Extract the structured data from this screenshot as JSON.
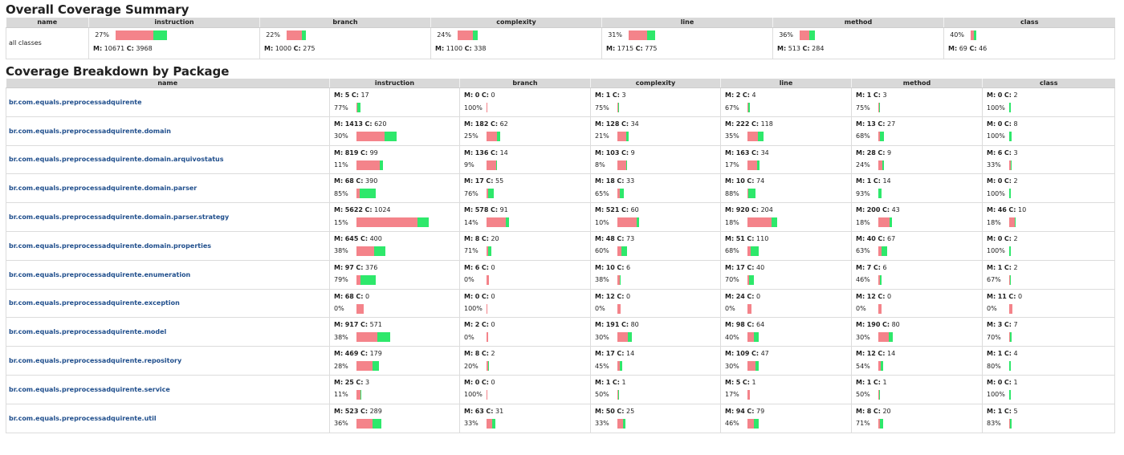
{
  "overall": {
    "title": "Overall Coverage Summary",
    "headers": [
      "name",
      "instruction",
      "branch",
      "complexity",
      "line",
      "method",
      "class"
    ],
    "row": {
      "name": "all classes",
      "cells": [
        {
          "pct": "27%",
          "missed": 10671,
          "covered": 3968,
          "m_label": "M:",
          "c_label": "C:",
          "m": "10671",
          "c": "3968"
        },
        {
          "pct": "22%",
          "missed": 1000,
          "covered": 275,
          "m_label": "M:",
          "c_label": "C:",
          "m": "1000",
          "c": "275"
        },
        {
          "pct": "24%",
          "missed": 1100,
          "covered": 338,
          "m_label": "M:",
          "c_label": "C:",
          "m": "1100",
          "c": "338"
        },
        {
          "pct": "31%",
          "missed": 1715,
          "covered": 775,
          "m_label": "M:",
          "c_label": "C:",
          "m": "1715",
          "c": "775"
        },
        {
          "pct": "36%",
          "missed": 513,
          "covered": 284,
          "m_label": "M:",
          "c_label": "C:",
          "m": "513",
          "c": "284"
        },
        {
          "pct": "40%",
          "missed": 69,
          "covered": 46,
          "m_label": "M:",
          "c_label": "C:",
          "m": "69",
          "c": "46"
        }
      ]
    }
  },
  "packages": {
    "title": "Coverage Breakdown by Package",
    "headers": [
      "name",
      "instruction",
      "branch",
      "complexity",
      "line",
      "method",
      "class"
    ],
    "rows": [
      {
        "name": "br.com.equals.preprocessadquirente",
        "cells": [
          {
            "m": "5",
            "c": "17",
            "pct": "77%"
          },
          {
            "m": "0",
            "c": "0",
            "pct": "100%"
          },
          {
            "m": "1",
            "c": "3",
            "pct": "75%"
          },
          {
            "m": "2",
            "c": "4",
            "pct": "67%"
          },
          {
            "m": "1",
            "c": "3",
            "pct": "75%"
          },
          {
            "m": "0",
            "c": "2",
            "pct": "100%"
          }
        ]
      },
      {
        "name": "br.com.equals.preprocessadquirente.domain",
        "cells": [
          {
            "m": "1413",
            "c": "620",
            "pct": "30%"
          },
          {
            "m": "182",
            "c": "62",
            "pct": "25%"
          },
          {
            "m": "128",
            "c": "34",
            "pct": "21%"
          },
          {
            "m": "222",
            "c": "118",
            "pct": "35%"
          },
          {
            "m": "13",
            "c": "27",
            "pct": "68%"
          },
          {
            "m": "0",
            "c": "8",
            "pct": "100%"
          }
        ]
      },
      {
        "name": "br.com.equals.preprocessadquirente.domain.arquivostatus",
        "cells": [
          {
            "m": "819",
            "c": "99",
            "pct": "11%"
          },
          {
            "m": "136",
            "c": "14",
            "pct": "9%"
          },
          {
            "m": "103",
            "c": "9",
            "pct": "8%"
          },
          {
            "m": "163",
            "c": "34",
            "pct": "17%"
          },
          {
            "m": "28",
            "c": "9",
            "pct": "24%"
          },
          {
            "m": "6",
            "c": "3",
            "pct": "33%"
          }
        ]
      },
      {
        "name": "br.com.equals.preprocessadquirente.domain.parser",
        "cells": [
          {
            "m": "68",
            "c": "390",
            "pct": "85%"
          },
          {
            "m": "17",
            "c": "55",
            "pct": "76%"
          },
          {
            "m": "18",
            "c": "33",
            "pct": "65%"
          },
          {
            "m": "10",
            "c": "74",
            "pct": "88%"
          },
          {
            "m": "1",
            "c": "14",
            "pct": "93%"
          },
          {
            "m": "0",
            "c": "2",
            "pct": "100%"
          }
        ]
      },
      {
        "name": "br.com.equals.preprocessadquirente.domain.parser.strategy",
        "cells": [
          {
            "m": "5622",
            "c": "1024",
            "pct": "15%"
          },
          {
            "m": "578",
            "c": "91",
            "pct": "14%"
          },
          {
            "m": "521",
            "c": "60",
            "pct": "10%"
          },
          {
            "m": "920",
            "c": "204",
            "pct": "18%"
          },
          {
            "m": "200",
            "c": "43",
            "pct": "18%"
          },
          {
            "m": "46",
            "c": "10",
            "pct": "18%"
          }
        ]
      },
      {
        "name": "br.com.equals.preprocessadquirente.domain.properties",
        "cells": [
          {
            "m": "645",
            "c": "400",
            "pct": "38%"
          },
          {
            "m": "8",
            "c": "20",
            "pct": "71%"
          },
          {
            "m": "48",
            "c": "73",
            "pct": "60%"
          },
          {
            "m": "51",
            "c": "110",
            "pct": "68%"
          },
          {
            "m": "40",
            "c": "67",
            "pct": "63%"
          },
          {
            "m": "0",
            "c": "2",
            "pct": "100%"
          }
        ]
      },
      {
        "name": "br.com.equals.preprocessadquirente.enumeration",
        "cells": [
          {
            "m": "97",
            "c": "376",
            "pct": "79%"
          },
          {
            "m": "6",
            "c": "0",
            "pct": "0%"
          },
          {
            "m": "10",
            "c": "6",
            "pct": "38%"
          },
          {
            "m": "17",
            "c": "40",
            "pct": "70%"
          },
          {
            "m": "7",
            "c": "6",
            "pct": "46%"
          },
          {
            "m": "1",
            "c": "2",
            "pct": "67%"
          }
        ]
      },
      {
        "name": "br.com.equals.preprocessadquirente.exception",
        "cells": [
          {
            "m": "68",
            "c": "0",
            "pct": "0%"
          },
          {
            "m": "0",
            "c": "0",
            "pct": "100%"
          },
          {
            "m": "12",
            "c": "0",
            "pct": "0%"
          },
          {
            "m": "24",
            "c": "0",
            "pct": "0%"
          },
          {
            "m": "12",
            "c": "0",
            "pct": "0%"
          },
          {
            "m": "11",
            "c": "0",
            "pct": "0%"
          }
        ]
      },
      {
        "name": "br.com.equals.preprocessadquirente.model",
        "cells": [
          {
            "m": "917",
            "c": "571",
            "pct": "38%"
          },
          {
            "m": "2",
            "c": "0",
            "pct": "0%"
          },
          {
            "m": "191",
            "c": "80",
            "pct": "30%"
          },
          {
            "m": "98",
            "c": "64",
            "pct": "40%"
          },
          {
            "m": "190",
            "c": "80",
            "pct": "30%"
          },
          {
            "m": "3",
            "c": "7",
            "pct": "70%"
          }
        ]
      },
      {
        "name": "br.com.equals.preprocessadquirente.repository",
        "cells": [
          {
            "m": "469",
            "c": "179",
            "pct": "28%"
          },
          {
            "m": "8",
            "c": "2",
            "pct": "20%"
          },
          {
            "m": "17",
            "c": "14",
            "pct": "45%"
          },
          {
            "m": "109",
            "c": "47",
            "pct": "30%"
          },
          {
            "m": "12",
            "c": "14",
            "pct": "54%"
          },
          {
            "m": "1",
            "c": "4",
            "pct": "80%"
          }
        ]
      },
      {
        "name": "br.com.equals.preprocessadquirente.service",
        "cells": [
          {
            "m": "25",
            "c": "3",
            "pct": "11%"
          },
          {
            "m": "0",
            "c": "0",
            "pct": "100%"
          },
          {
            "m": "1",
            "c": "1",
            "pct": "50%"
          },
          {
            "m": "5",
            "c": "1",
            "pct": "17%"
          },
          {
            "m": "1",
            "c": "1",
            "pct": "50%"
          },
          {
            "m": "0",
            "c": "1",
            "pct": "100%"
          }
        ]
      },
      {
        "name": "br.com.equals.preprocessadquirente.util",
        "cells": [
          {
            "m": "523",
            "c": "289",
            "pct": "36%"
          },
          {
            "m": "63",
            "c": "31",
            "pct": "33%"
          },
          {
            "m": "50",
            "c": "25",
            "pct": "33%"
          },
          {
            "m": "94",
            "c": "79",
            "pct": "46%"
          },
          {
            "m": "8",
            "c": "20",
            "pct": "71%"
          },
          {
            "m": "1",
            "c": "5",
            "pct": "83%"
          }
        ]
      }
    ]
  },
  "labels": {
    "m_label": "M:",
    "c_label": "C:"
  },
  "colors": {
    "missed": "#f4838a",
    "covered": "#2ee86b",
    "header_bg": "#d9d9d9",
    "link": "#1f4e8c"
  }
}
